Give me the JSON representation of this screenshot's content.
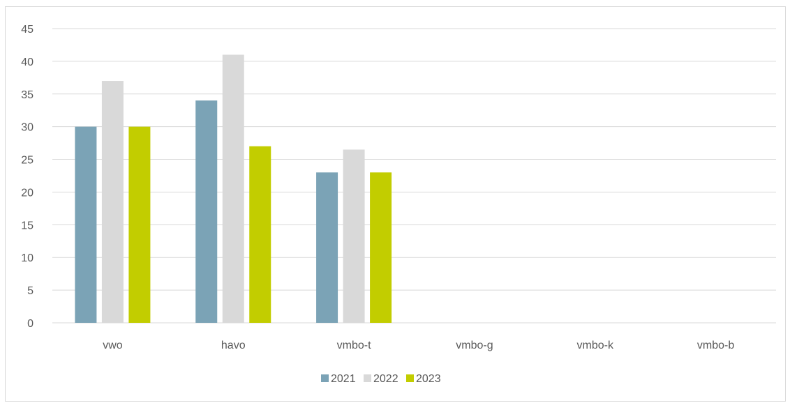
{
  "chart_data": {
    "type": "bar",
    "title": "",
    "xlabel": "",
    "ylabel": "",
    "categories": [
      "vwo",
      "havo",
      "vmbo-t",
      "vmbo-g",
      "vmbo-k",
      "vmbo-b"
    ],
    "series": [
      {
        "name": "2021",
        "color": "#7ba3b6",
        "values": [
          30,
          34,
          23,
          null,
          null,
          null
        ]
      },
      {
        "name": "2022",
        "color": "#d9d9d9",
        "values": [
          37,
          41,
          26.5,
          null,
          null,
          null
        ]
      },
      {
        "name": "2023",
        "color": "#c2cd00",
        "values": [
          30,
          27,
          23,
          null,
          null,
          null
        ]
      }
    ],
    "ylim": [
      0,
      45
    ],
    "yticks": [
      "0",
      "5",
      "10",
      "15",
      "20",
      "25",
      "30",
      "35",
      "40",
      "45"
    ],
    "grid": true,
    "legend_position": "bottom"
  }
}
